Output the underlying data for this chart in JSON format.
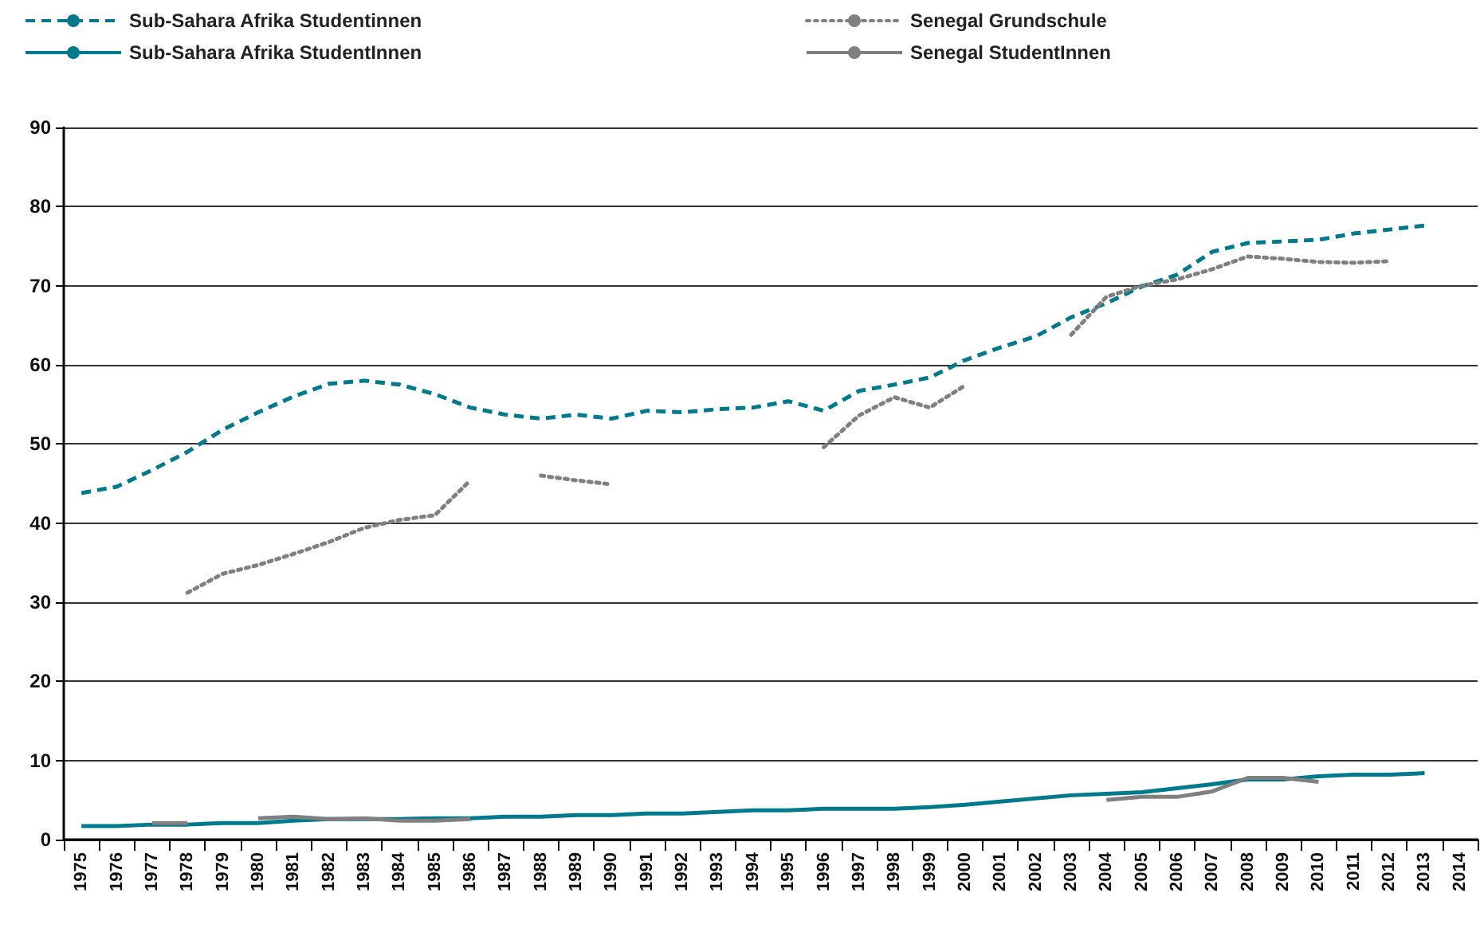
{
  "chart_data": {
    "type": "line",
    "categories": [
      "1975",
      "1976",
      "1977",
      "1978",
      "1979",
      "1980",
      "1981",
      "1982",
      "1983",
      "1984",
      "1985",
      "1986",
      "1987",
      "1988",
      "1989",
      "1990",
      "1991",
      "1992",
      "1993",
      "1994",
      "1995",
      "1996",
      "1997",
      "1998",
      "1999",
      "2000",
      "2001",
      "2002",
      "2003",
      "2004",
      "2005",
      "2006",
      "2007",
      "2008",
      "2009",
      "2010",
      "2011",
      "2012",
      "2013",
      "2014"
    ],
    "series": [
      {
        "name": "Sub-Sahara Afrika Studentinnen",
        "color": "#007a8c",
        "line_style": "dashed",
        "values": [
          43.8,
          44.6,
          46.7,
          49.0,
          51.8,
          54.0,
          56.0,
          57.6,
          58.0,
          57.5,
          56.3,
          54.6,
          53.7,
          53.2,
          53.7,
          53.2,
          54.2,
          54.0,
          54.4,
          54.6,
          55.4,
          54.2,
          56.7,
          57.5,
          58.4,
          60.6,
          62.2,
          63.6,
          66.0,
          67.8,
          69.9,
          71.4,
          74.3,
          75.4,
          75.6,
          75.8,
          76.6,
          77.1,
          77.6,
          null
        ]
      },
      {
        "name": "Senegal Grundschule",
        "color": "#808080",
        "line_style": "dotted",
        "values": [
          null,
          null,
          null,
          31.2,
          33.6,
          34.7,
          36.1,
          37.6,
          39.4,
          40.4,
          41.0,
          45.4,
          null,
          46.0,
          45.4,
          44.9,
          null,
          null,
          null,
          null,
          null,
          49.6,
          53.6,
          55.9,
          54.6,
          57.4,
          null,
          null,
          63.8,
          68.6,
          70.0,
          70.8,
          72.1,
          73.7,
          73.4,
          73.0,
          72.9,
          73.1,
          null,
          null
        ]
      },
      {
        "name": "Sub-Sahara Afrika StudentInnen",
        "color": "#007a8c",
        "line_style": "solid",
        "values": [
          1.7,
          1.7,
          1.9,
          1.9,
          2.1,
          2.1,
          2.4,
          2.6,
          2.6,
          2.6,
          2.7,
          2.7,
          2.9,
          2.9,
          3.1,
          3.1,
          3.3,
          3.3,
          3.5,
          3.7,
          3.7,
          3.9,
          3.9,
          3.9,
          4.1,
          4.4,
          4.8,
          5.2,
          5.6,
          5.8,
          6.0,
          6.5,
          7.0,
          7.6,
          7.6,
          8.0,
          8.2,
          8.2,
          8.4,
          null
        ]
      },
      {
        "name": "Senegal StudentInnen",
        "color": "#808080",
        "line_style": "solid",
        "values": [
          null,
          null,
          2.1,
          2.1,
          null,
          2.7,
          2.9,
          2.6,
          2.7,
          2.4,
          2.4,
          2.6,
          null,
          null,
          null,
          null,
          null,
          null,
          null,
          null,
          null,
          null,
          null,
          null,
          null,
          null,
          null,
          null,
          null,
          5.0,
          5.4,
          5.4,
          6.1,
          7.8,
          7.8,
          7.3,
          null,
          null,
          null,
          null
        ]
      }
    ],
    "ylim": [
      0,
      90
    ],
    "yticks": [
      0,
      10,
      20,
      30,
      40,
      50,
      60,
      70,
      80,
      90
    ],
    "grid": "y",
    "legend": "top",
    "marker": "none"
  }
}
